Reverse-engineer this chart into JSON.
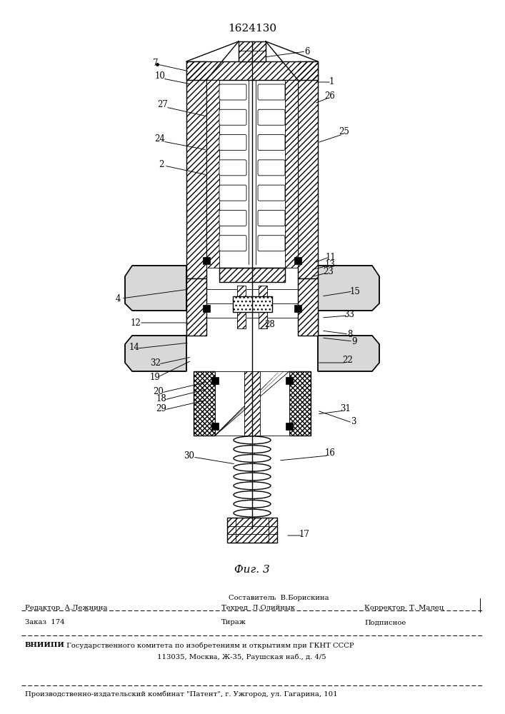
{
  "patent_number": "1624130",
  "fig_label": "Фиг. 3",
  "bg_color": "#ffffff",
  "line_color": "#000000",
  "footer": {
    "row1_center": "Составитель  В.Борискина",
    "row2_left": "Редактор  А.Лежнина",
    "row2_center": "Техред  Л.Олийнык",
    "row2_right": "Корректор  Т. Малец",
    "row3_left": "Заказ  174",
    "row3_center": "Тираж",
    "row3_right": "Подписное",
    "row4": "ВНИИПИ  Государственного комитета по изобретениям и открытиям при ГКНТ СССР",
    "row5": "113035, Москва, Ж-35, Раушская наб., д. 4/5",
    "row6": "Производственно-издательский комбинат \"Патент\", г. Ужгород, ул. Гагарина, 101"
  }
}
